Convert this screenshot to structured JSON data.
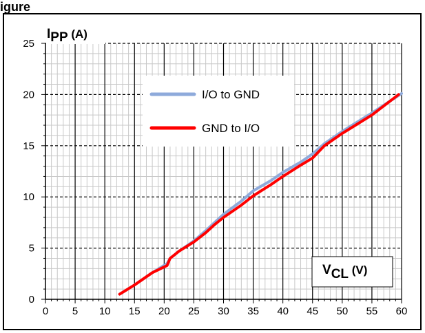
{
  "header_text": "igure",
  "chart_data": {
    "type": "line",
    "title": "",
    "ylabel": {
      "main": "I",
      "sub": "PP",
      "unit": " (A)"
    },
    "xlabel": {
      "main": "V",
      "sub": "CL",
      "unit": " (V)"
    },
    "xlim": [
      0,
      60
    ],
    "ylim": [
      0,
      25
    ],
    "x_major_step": 5,
    "y_major_step": 5,
    "x_minor_step": 1,
    "y_minor_step": 1,
    "grid": true,
    "legend_placement": "upper-left-center",
    "series": [
      {
        "name": "I/O to GND",
        "color": "#8eaadb",
        "points": [
          [
            12.5,
            0.5
          ],
          [
            15,
            1.4
          ],
          [
            18,
            2.6
          ],
          [
            20.5,
            3.5
          ],
          [
            21,
            4
          ],
          [
            22.5,
            4.7
          ],
          [
            25,
            5.7
          ],
          [
            27,
            6.7
          ],
          [
            28.5,
            7.5
          ],
          [
            30,
            8.3
          ],
          [
            33,
            9.6
          ],
          [
            35,
            10.6
          ],
          [
            38,
            11.6
          ],
          [
            40,
            12.4
          ],
          [
            43,
            13.4
          ],
          [
            45,
            14.2
          ],
          [
            47,
            15.2
          ],
          [
            50,
            16.4
          ],
          [
            55,
            18.2
          ],
          [
            60,
            20.1
          ]
        ]
      },
      {
        "name": "GND to I/O",
        "color": "#ff0000",
        "points": [
          [
            12.5,
            0.5
          ],
          [
            15,
            1.4
          ],
          [
            18,
            2.6
          ],
          [
            20.5,
            3.3
          ],
          [
            21,
            4
          ],
          [
            22.5,
            4.7
          ],
          [
            25,
            5.6
          ],
          [
            27,
            6.5
          ],
          [
            28.5,
            7.3
          ],
          [
            30,
            8
          ],
          [
            33,
            9.2
          ],
          [
            35,
            10.1
          ],
          [
            38,
            11.2
          ],
          [
            40,
            12
          ],
          [
            43,
            13.1
          ],
          [
            45,
            13.8
          ],
          [
            47,
            15
          ],
          [
            50,
            16.2
          ],
          [
            55,
            18
          ],
          [
            59.5,
            20
          ]
        ]
      }
    ]
  }
}
